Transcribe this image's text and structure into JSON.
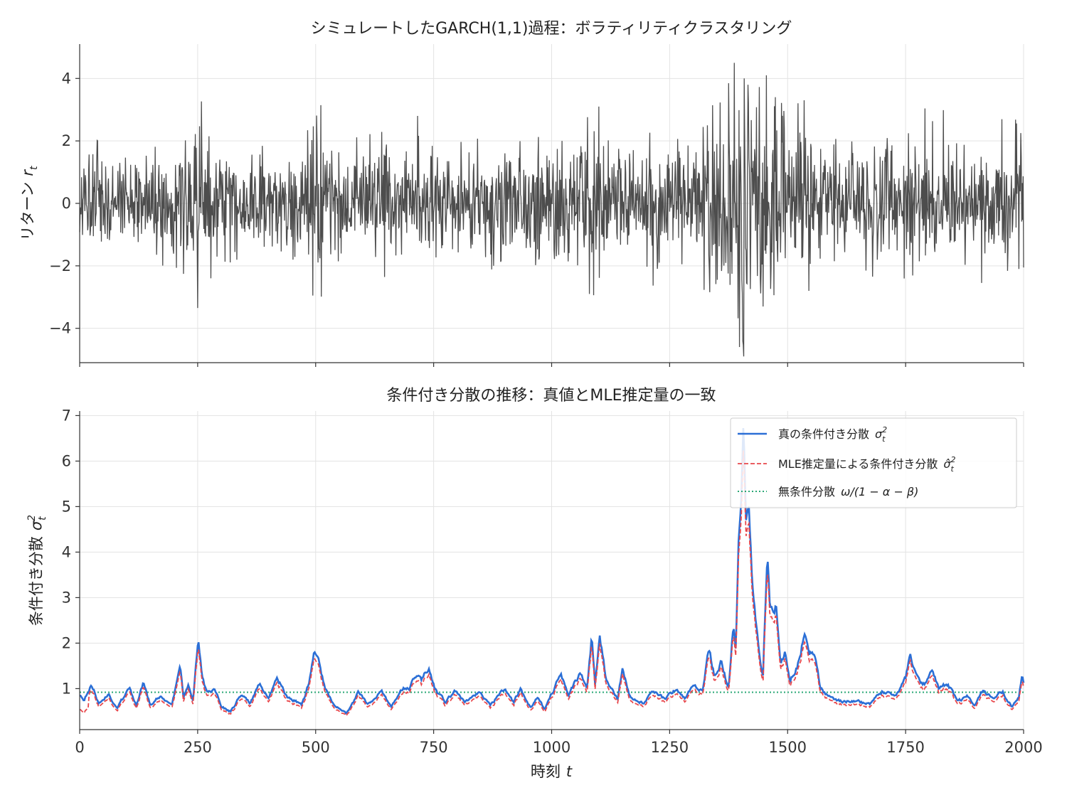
{
  "chart_data": [
    {
      "type": "line",
      "title": "シミュレートしたGARCH(1,1)過程：ボラティリティクラスタリング",
      "ylabel": "リターン",
      "ylabel_symbol": "r",
      "ylabel_subscript": "t",
      "xlim": [
        0,
        2000
      ],
      "ylim": [
        -5.1,
        5.1
      ],
      "xticks": [
        0,
        250,
        500,
        750,
        1000,
        1250,
        1500,
        1750,
        2000
      ],
      "yticks": [
        -4,
        -2,
        0,
        2,
        4
      ],
      "ytick_labels": [
        "−4",
        "−2",
        "0",
        "2",
        "4"
      ],
      "grid": true,
      "colors": {
        "returns": "#4d4d4d"
      },
      "n_points": 2001,
      "volatility_regime": [
        {
          "x": 0,
          "sd": 0.85
        },
        {
          "x": 200,
          "sd": 0.75
        },
        {
          "x": 250,
          "sd": 1.2
        },
        {
          "x": 290,
          "sd": 0.75
        },
        {
          "x": 490,
          "sd": 0.85
        },
        {
          "x": 500,
          "sd": 1.3
        },
        {
          "x": 560,
          "sd": 0.75
        },
        {
          "x": 700,
          "sd": 1.0
        },
        {
          "x": 760,
          "sd": 0.85
        },
        {
          "x": 1000,
          "sd": 0.9
        },
        {
          "x": 1080,
          "sd": 1.2
        },
        {
          "x": 1110,
          "sd": 1.25
        },
        {
          "x": 1150,
          "sd": 0.85
        },
        {
          "x": 1300,
          "sd": 1.0
        },
        {
          "x": 1350,
          "sd": 1.25
        },
        {
          "x": 1400,
          "sd": 2.2
        },
        {
          "x": 1420,
          "sd": 1.9
        },
        {
          "x": 1460,
          "sd": 1.6
        },
        {
          "x": 1500,
          "sd": 1.1
        },
        {
          "x": 1550,
          "sd": 1.1
        },
        {
          "x": 1600,
          "sd": 0.8
        },
        {
          "x": 1750,
          "sd": 1.1
        },
        {
          "x": 1800,
          "sd": 0.95
        },
        {
          "x": 1950,
          "sd": 0.85
        },
        {
          "x": 2000,
          "sd": 1.0
        }
      ],
      "spikes": [
        {
          "x": 250,
          "y": -3.35
        },
        {
          "x": 278,
          "y": -2.4
        },
        {
          "x": 494,
          "y": -2.95
        },
        {
          "x": 1022,
          "y": 2.0
        },
        {
          "x": 1080,
          "y": -2.9
        },
        {
          "x": 1100,
          "y": 3.1
        },
        {
          "x": 1330,
          "y": 2.5
        },
        {
          "x": 1387,
          "y": 4.5
        },
        {
          "x": 1398,
          "y": -4.6
        },
        {
          "x": 1408,
          "y": 4.0
        },
        {
          "x": 1416,
          "y": 3.8
        },
        {
          "x": 1448,
          "y": -3.3
        },
        {
          "x": 1455,
          "y": 4.1
        },
        {
          "x": 1474,
          "y": 3.4
        },
        {
          "x": 1535,
          "y": 3.3
        },
        {
          "x": 1545,
          "y": -2.8
        },
        {
          "x": 1994,
          "y": 2.25
        },
        {
          "x": 1990,
          "y": -2.1
        }
      ]
    },
    {
      "type": "line",
      "title": "条件付き分散の推移：真値とMLE推定量の一致",
      "xlabel": "時刻",
      "xlabel_symbol": "t",
      "ylabel": "条件付き分散",
      "ylabel_symbol": "σ",
      "ylabel_superscript": "2",
      "ylabel_subscript": "t",
      "xlim": [
        0,
        2000
      ],
      "ylim": [
        0.1,
        7.1
      ],
      "xticks": [
        0,
        250,
        500,
        750,
        1000,
        1250,
        1500,
        1750,
        2000
      ],
      "yticks": [
        1,
        2,
        3,
        4,
        5,
        6,
        7
      ],
      "grid": true,
      "legend": {
        "placement": "upper-right",
        "entries": [
          {
            "label": "真の条件付き分散",
            "math": "σ",
            "sup": "2",
            "sub": "t",
            "color": "#2b6fd6",
            "style": "solid"
          },
          {
            "label": "MLE推定量による条件付き分散",
            "math": "σ̂",
            "sup": "2",
            "sub": "t",
            "color": "#e8474c",
            "style": "dashed"
          },
          {
            "label": "無条件分散",
            "math": "ω/(1 − α − β)",
            "color": "#2aa876",
            "style": "dotted"
          }
        ]
      },
      "unconditional_variance": 0.92,
      "true_variance_keypoints": [
        {
          "x": 0,
          "y": 0.85
        },
        {
          "x": 10,
          "y": 0.75
        },
        {
          "x": 25,
          "y": 1.1
        },
        {
          "x": 40,
          "y": 0.7
        },
        {
          "x": 60,
          "y": 0.9
        },
        {
          "x": 80,
          "y": 0.6
        },
        {
          "x": 105,
          "y": 1.0
        },
        {
          "x": 120,
          "y": 0.65
        },
        {
          "x": 135,
          "y": 1.12
        },
        {
          "x": 150,
          "y": 0.65
        },
        {
          "x": 170,
          "y": 0.85
        },
        {
          "x": 195,
          "y": 0.6
        },
        {
          "x": 213,
          "y": 1.5
        },
        {
          "x": 220,
          "y": 0.8
        },
        {
          "x": 230,
          "y": 1.1
        },
        {
          "x": 240,
          "y": 0.75
        },
        {
          "x": 251,
          "y": 2.05
        },
        {
          "x": 260,
          "y": 1.2
        },
        {
          "x": 270,
          "y": 0.9
        },
        {
          "x": 285,
          "y": 1.0
        },
        {
          "x": 300,
          "y": 0.6
        },
        {
          "x": 320,
          "y": 0.5
        },
        {
          "x": 345,
          "y": 0.9
        },
        {
          "x": 360,
          "y": 0.7
        },
        {
          "x": 382,
          "y": 1.1
        },
        {
          "x": 400,
          "y": 0.75
        },
        {
          "x": 418,
          "y": 1.25
        },
        {
          "x": 440,
          "y": 0.8
        },
        {
          "x": 470,
          "y": 0.65
        },
        {
          "x": 486,
          "y": 1.1
        },
        {
          "x": 496,
          "y": 1.85
        },
        {
          "x": 505,
          "y": 1.6
        },
        {
          "x": 520,
          "y": 1.0
        },
        {
          "x": 540,
          "y": 0.6
        },
        {
          "x": 565,
          "y": 0.45
        },
        {
          "x": 590,
          "y": 0.9
        },
        {
          "x": 610,
          "y": 0.65
        },
        {
          "x": 640,
          "y": 0.95
        },
        {
          "x": 660,
          "y": 0.6
        },
        {
          "x": 680,
          "y": 1.0
        },
        {
          "x": 700,
          "y": 1.05
        },
        {
          "x": 715,
          "y": 1.35
        },
        {
          "x": 725,
          "y": 1.2
        },
        {
          "x": 740,
          "y": 1.5
        },
        {
          "x": 752,
          "y": 1.0
        },
        {
          "x": 775,
          "y": 0.7
        },
        {
          "x": 795,
          "y": 0.95
        },
        {
          "x": 815,
          "y": 0.7
        },
        {
          "x": 845,
          "y": 0.9
        },
        {
          "x": 870,
          "y": 0.65
        },
        {
          "x": 900,
          "y": 1.0
        },
        {
          "x": 920,
          "y": 0.7
        },
        {
          "x": 935,
          "y": 1.0
        },
        {
          "x": 955,
          "y": 0.6
        },
        {
          "x": 970,
          "y": 0.8
        },
        {
          "x": 985,
          "y": 0.55
        },
        {
          "x": 1000,
          "y": 0.9
        },
        {
          "x": 1020,
          "y": 1.35
        },
        {
          "x": 1035,
          "y": 0.85
        },
        {
          "x": 1060,
          "y": 1.35
        },
        {
          "x": 1075,
          "y": 1.0
        },
        {
          "x": 1085,
          "y": 2.1
        },
        {
          "x": 1092,
          "y": 1.1
        },
        {
          "x": 1102,
          "y": 2.25
        },
        {
          "x": 1115,
          "y": 1.2
        },
        {
          "x": 1140,
          "y": 0.8
        },
        {
          "x": 1150,
          "y": 1.45
        },
        {
          "x": 1165,
          "y": 0.8
        },
        {
          "x": 1195,
          "y": 0.7
        },
        {
          "x": 1215,
          "y": 0.95
        },
        {
          "x": 1240,
          "y": 0.75
        },
        {
          "x": 1260,
          "y": 0.95
        },
        {
          "x": 1285,
          "y": 0.8
        },
        {
          "x": 1300,
          "y": 1.1
        },
        {
          "x": 1320,
          "y": 0.95
        },
        {
          "x": 1333,
          "y": 1.9
        },
        {
          "x": 1345,
          "y": 1.3
        },
        {
          "x": 1360,
          "y": 1.6
        },
        {
          "x": 1375,
          "y": 1.0
        },
        {
          "x": 1385,
          "y": 2.4
        },
        {
          "x": 1390,
          "y": 1.9
        },
        {
          "x": 1397,
          "y": 4.5
        },
        {
          "x": 1402,
          "y": 5.0
        },
        {
          "x": 1406,
          "y": 6.8
        },
        {
          "x": 1412,
          "y": 4.8
        },
        {
          "x": 1418,
          "y": 5.1
        },
        {
          "x": 1425,
          "y": 3.2
        },
        {
          "x": 1432,
          "y": 2.6
        },
        {
          "x": 1440,
          "y": 1.7
        },
        {
          "x": 1448,
          "y": 1.3
        },
        {
          "x": 1457,
          "y": 4.1
        },
        {
          "x": 1462,
          "y": 2.9
        },
        {
          "x": 1470,
          "y": 2.6
        },
        {
          "x": 1475,
          "y": 2.8
        },
        {
          "x": 1485,
          "y": 1.5
        },
        {
          "x": 1495,
          "y": 1.8
        },
        {
          "x": 1505,
          "y": 1.2
        },
        {
          "x": 1520,
          "y": 1.5
        },
        {
          "x": 1535,
          "y": 2.2
        },
        {
          "x": 1545,
          "y": 1.7
        },
        {
          "x": 1555,
          "y": 1.8
        },
        {
          "x": 1570,
          "y": 1.0
        },
        {
          "x": 1590,
          "y": 0.8
        },
        {
          "x": 1620,
          "y": 0.7
        },
        {
          "x": 1645,
          "y": 0.75
        },
        {
          "x": 1675,
          "y": 0.65
        },
        {
          "x": 1700,
          "y": 0.95
        },
        {
          "x": 1730,
          "y": 0.8
        },
        {
          "x": 1750,
          "y": 1.2
        },
        {
          "x": 1760,
          "y": 1.75
        },
        {
          "x": 1772,
          "y": 1.3
        },
        {
          "x": 1790,
          "y": 1.1
        },
        {
          "x": 1805,
          "y": 1.45
        },
        {
          "x": 1820,
          "y": 1.0
        },
        {
          "x": 1840,
          "y": 1.1
        },
        {
          "x": 1860,
          "y": 0.7
        },
        {
          "x": 1880,
          "y": 0.8
        },
        {
          "x": 1895,
          "y": 0.65
        },
        {
          "x": 1915,
          "y": 0.95
        },
        {
          "x": 1935,
          "y": 0.75
        },
        {
          "x": 1955,
          "y": 0.95
        },
        {
          "x": 1975,
          "y": 0.6
        },
        {
          "x": 1990,
          "y": 0.8
        },
        {
          "x": 1997,
          "y": 1.35
        },
        {
          "x": 2000,
          "y": 1.1
        }
      ]
    }
  ]
}
